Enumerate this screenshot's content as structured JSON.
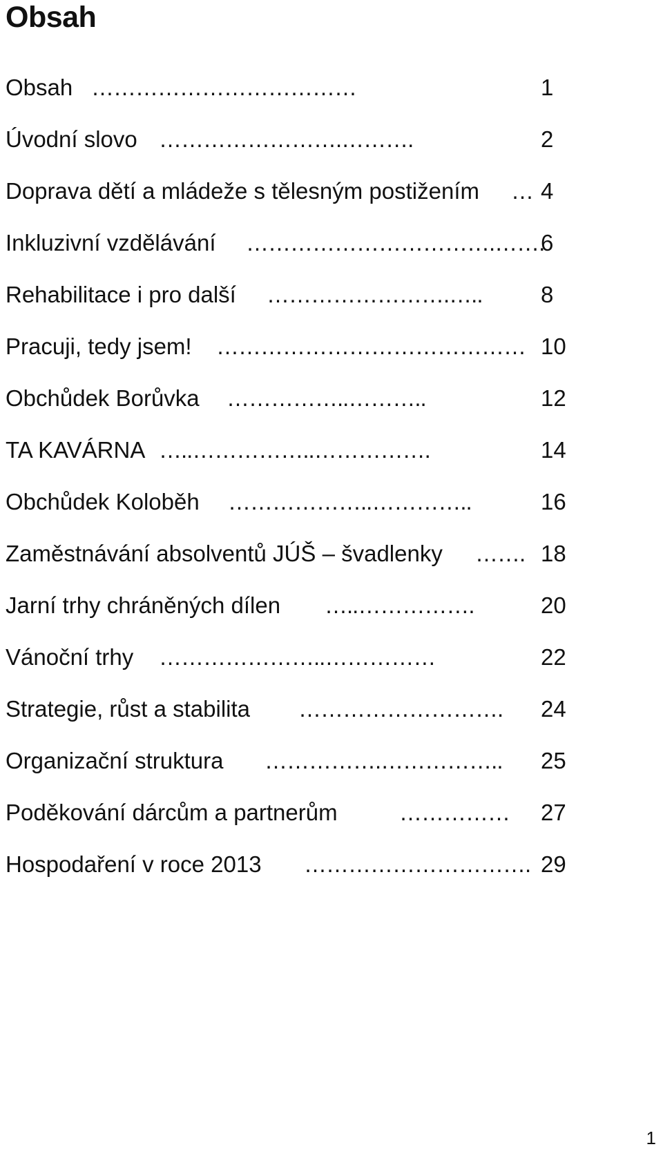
{
  "heading": "Obsah",
  "toc": [
    {
      "title": "Obsah",
      "leader": "………………………………",
      "page": "1"
    },
    {
      "title": "Úvodní slovo",
      "leader": "…………………….……….",
      "page": "2"
    },
    {
      "title": "Doprava dětí a mládeže s tělesným postižením",
      "leader": "…",
      "page": "4"
    },
    {
      "title": "Inkluzivní vzdělávání",
      "leader": "…………………………….…….",
      "page": "6"
    },
    {
      "title": "Rehabilitace i pro další",
      "leader": "…………………….…..",
      "page": "8"
    },
    {
      "title": "Pracuji, tedy jsem!",
      "leader": "……………………………………",
      "page": "10"
    },
    {
      "title": "Obchůdek Borůvka",
      "leader": "……………..………..",
      "page": "12"
    },
    {
      "title": "TA KAVÁRNA",
      "leader": "…..……………..…………….",
      "page": "14"
    },
    {
      "title": "Obchůdek Koloběh",
      "leader": "………………..…………..",
      "page": "16"
    },
    {
      "title": "Zaměstnávání absolventů JÚŠ – švadlenky",
      "leader": "…….",
      "page": "18"
    },
    {
      "title": "Jarní trhy chráněných dílen",
      "leader": "…..…………….",
      "page": "20"
    },
    {
      "title": "Vánoční trhy",
      "leader": "…………………..……………",
      "page": "22"
    },
    {
      "title": "Strategie, růst a stabilita",
      "leader": "……………………….",
      "page": "24"
    },
    {
      "title": "Organizační struktura",
      "leader": "…………….……………..",
      "page": "25"
    },
    {
      "title": "Poděkování dárcům a partnerům",
      "leader": "……………",
      "page": "27"
    },
    {
      "title": "Hospodaření v roce 2013",
      "leader": "………………………….",
      "page": "29"
    }
  ],
  "page_number": "1"
}
